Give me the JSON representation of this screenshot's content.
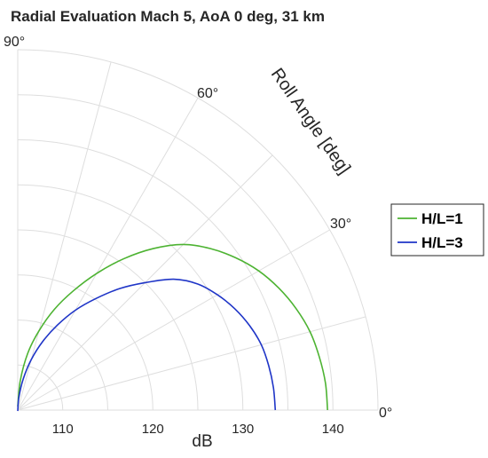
{
  "chart_data": {
    "type": "line",
    "coordinate_system": "polar",
    "title": "Radial Evaluation Mach 5, AoA 0 deg, 31 km",
    "radial_label": "dB",
    "angular_label": "Roll Angle [deg]",
    "radial_ticks": [
      "110",
      "120",
      "130",
      "140"
    ],
    "angular_ticks": [
      "0°",
      "30°",
      "60°",
      "90°"
    ],
    "rlim": [
      105,
      145
    ],
    "thetalim": [
      0,
      90
    ],
    "theta_unit": "deg",
    "legend_position": "right",
    "grid": true,
    "series": [
      {
        "name": "H/L=1",
        "color": "#4db332",
        "points": [
          [
            0,
            139.4
          ],
          [
            5,
            139.3
          ],
          [
            10,
            139.0
          ],
          [
            15,
            138.6
          ],
          [
            20,
            137.9
          ],
          [
            25,
            137.0
          ],
          [
            30,
            135.9
          ],
          [
            35,
            134.5
          ],
          [
            40,
            132.9
          ],
          [
            45,
            131.0
          ],
          [
            50,
            128.4
          ],
          [
            55,
            125.5
          ],
          [
            60,
            122.5
          ],
          [
            65,
            119.6
          ],
          [
            70,
            116.9
          ],
          [
            75,
            114.1
          ],
          [
            80,
            111.4
          ],
          [
            85,
            108.3
          ],
          [
            90,
            105.4
          ]
        ]
      },
      {
        "name": "H/L=3",
        "color": "#1f35c7",
        "points": [
          [
            0,
            133.6
          ],
          [
            5,
            133.5
          ],
          [
            10,
            133.3
          ],
          [
            15,
            133.0
          ],
          [
            20,
            132.4
          ],
          [
            25,
            131.6
          ],
          [
            30,
            130.6
          ],
          [
            35,
            129.4
          ],
          [
            40,
            127.6
          ],
          [
            45,
            125.0
          ],
          [
            50,
            122.6
          ],
          [
            55,
            120.1
          ],
          [
            60,
            117.8
          ],
          [
            65,
            115.4
          ],
          [
            70,
            113.1
          ],
          [
            75,
            110.8
          ],
          [
            80,
            108.5
          ],
          [
            85,
            106.4
          ],
          [
            90,
            104.9
          ]
        ]
      }
    ]
  }
}
